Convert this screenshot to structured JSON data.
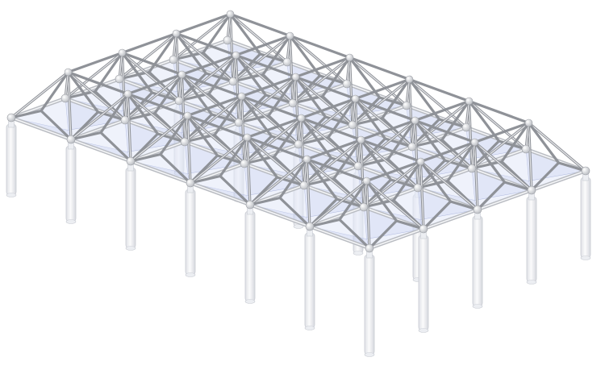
{
  "scene": {
    "subject": "space-frame-membrane-canopy",
    "grid_cols": 6,
    "grid_rows": 4,
    "colors": {
      "strut": "#8f9298",
      "beam": "#b9bcc2",
      "membrane": "#c9d2f0",
      "column": "#f2f3f5",
      "node": "#e8e9ec",
      "background": "#ffffff"
    }
  }
}
